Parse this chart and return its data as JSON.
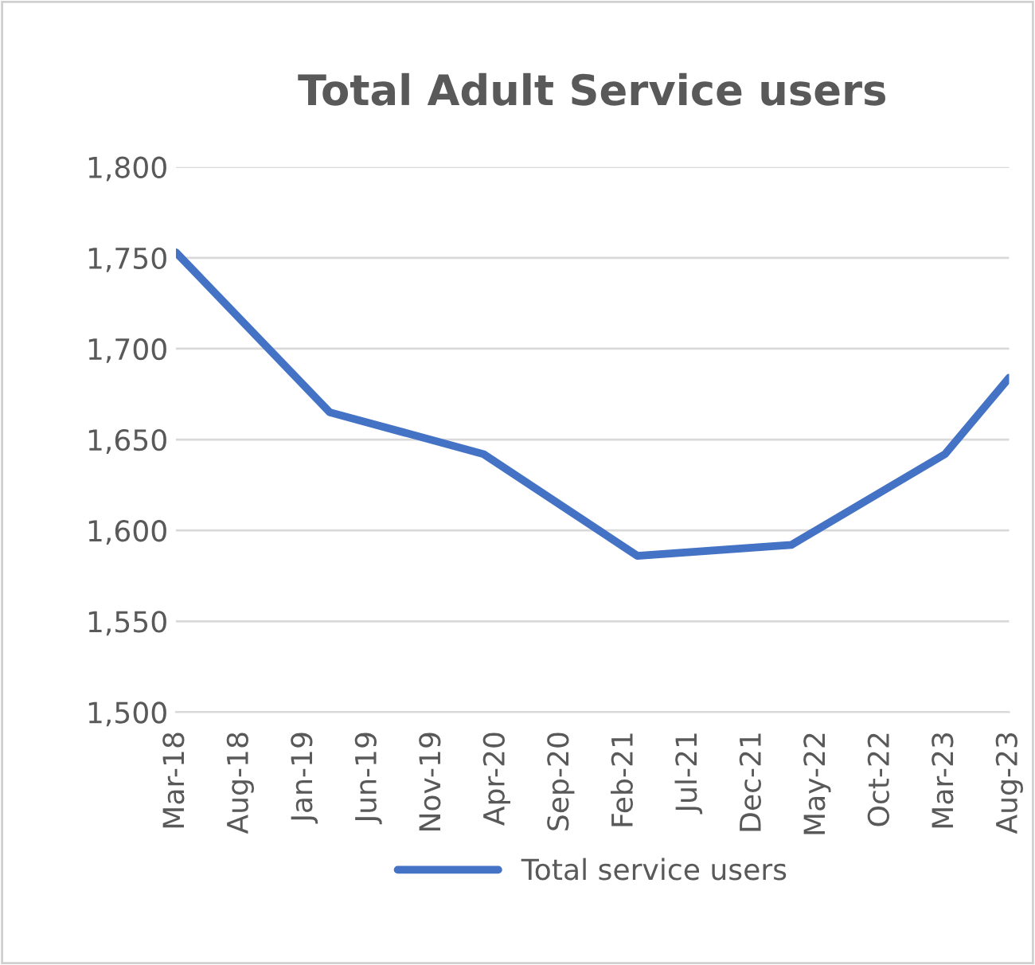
{
  "chart_data": {
    "type": "line",
    "title": "Total Adult Service users",
    "x": [
      "2018-03",
      "2019-03",
      "2020-03",
      "2021-03",
      "2022-03",
      "2023-03",
      "2023-08"
    ],
    "series": [
      {
        "name": "Total service users",
        "color": "#4472c4",
        "values": [
          1753,
          1665,
          1642,
          1586,
          1592,
          1642,
          1684
        ]
      }
    ],
    "xlim": [
      "2018-03",
      "2023-08"
    ],
    "xticks": [
      {
        "value": "2018-03",
        "label": "Mar-18"
      },
      {
        "value": "2018-08",
        "label": "Aug-18"
      },
      {
        "value": "2019-01",
        "label": "Jan-19"
      },
      {
        "value": "2019-06",
        "label": "Jun-19"
      },
      {
        "value": "2019-11",
        "label": "Nov-19"
      },
      {
        "value": "2020-04",
        "label": "Apr-20"
      },
      {
        "value": "2020-09",
        "label": "Sep-20"
      },
      {
        "value": "2021-02",
        "label": "Feb-21"
      },
      {
        "value": "2021-07",
        "label": "Jul-21"
      },
      {
        "value": "2021-12",
        "label": "Dec-21"
      },
      {
        "value": "2022-05",
        "label": "May-22"
      },
      {
        "value": "2022-10",
        "label": "Oct-22"
      },
      {
        "value": "2023-03",
        "label": "Mar-23"
      },
      {
        "value": "2023-08",
        "label": "Aug-23"
      }
    ],
    "ylim": [
      1500,
      1800
    ],
    "yticks": [
      {
        "value": 1500,
        "label": "1,500"
      },
      {
        "value": 1550,
        "label": "1,550"
      },
      {
        "value": 1600,
        "label": "1,600"
      },
      {
        "value": 1650,
        "label": "1,650"
      },
      {
        "value": 1700,
        "label": "1,700"
      },
      {
        "value": 1750,
        "label": "1,750"
      },
      {
        "value": 1800,
        "label": "1,800"
      }
    ],
    "grid": "y",
    "legend": "bottom",
    "marker": "none",
    "line_style": "solid"
  }
}
